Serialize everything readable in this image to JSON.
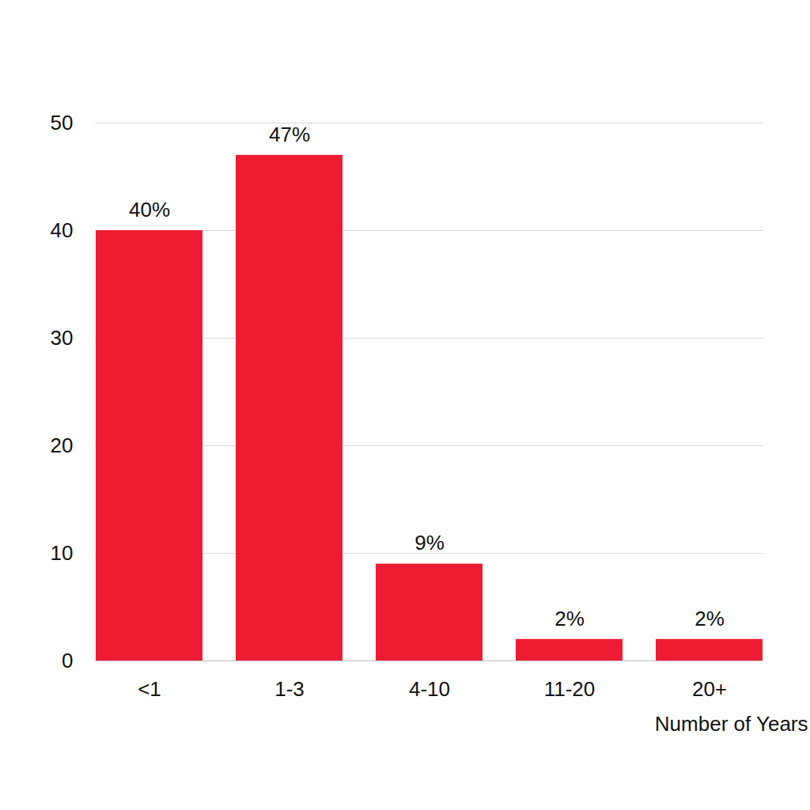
{
  "chart_data": {
    "type": "bar",
    "x_label": "Number of Years",
    "categories": [
      "<1",
      "1-3",
      "4-10",
      "11-20",
      "20+"
    ],
    "values": [
      40,
      47,
      9,
      2,
      2
    ],
    "value_labels": [
      "40%",
      "47%",
      "9%",
      "2%",
      "2%"
    ],
    "color": "#ed1c33",
    "ylim": [
      0,
      50
    ],
    "yticks": [
      0,
      10,
      20,
      30,
      40,
      50
    ],
    "grid": true,
    "data_labels": true
  }
}
